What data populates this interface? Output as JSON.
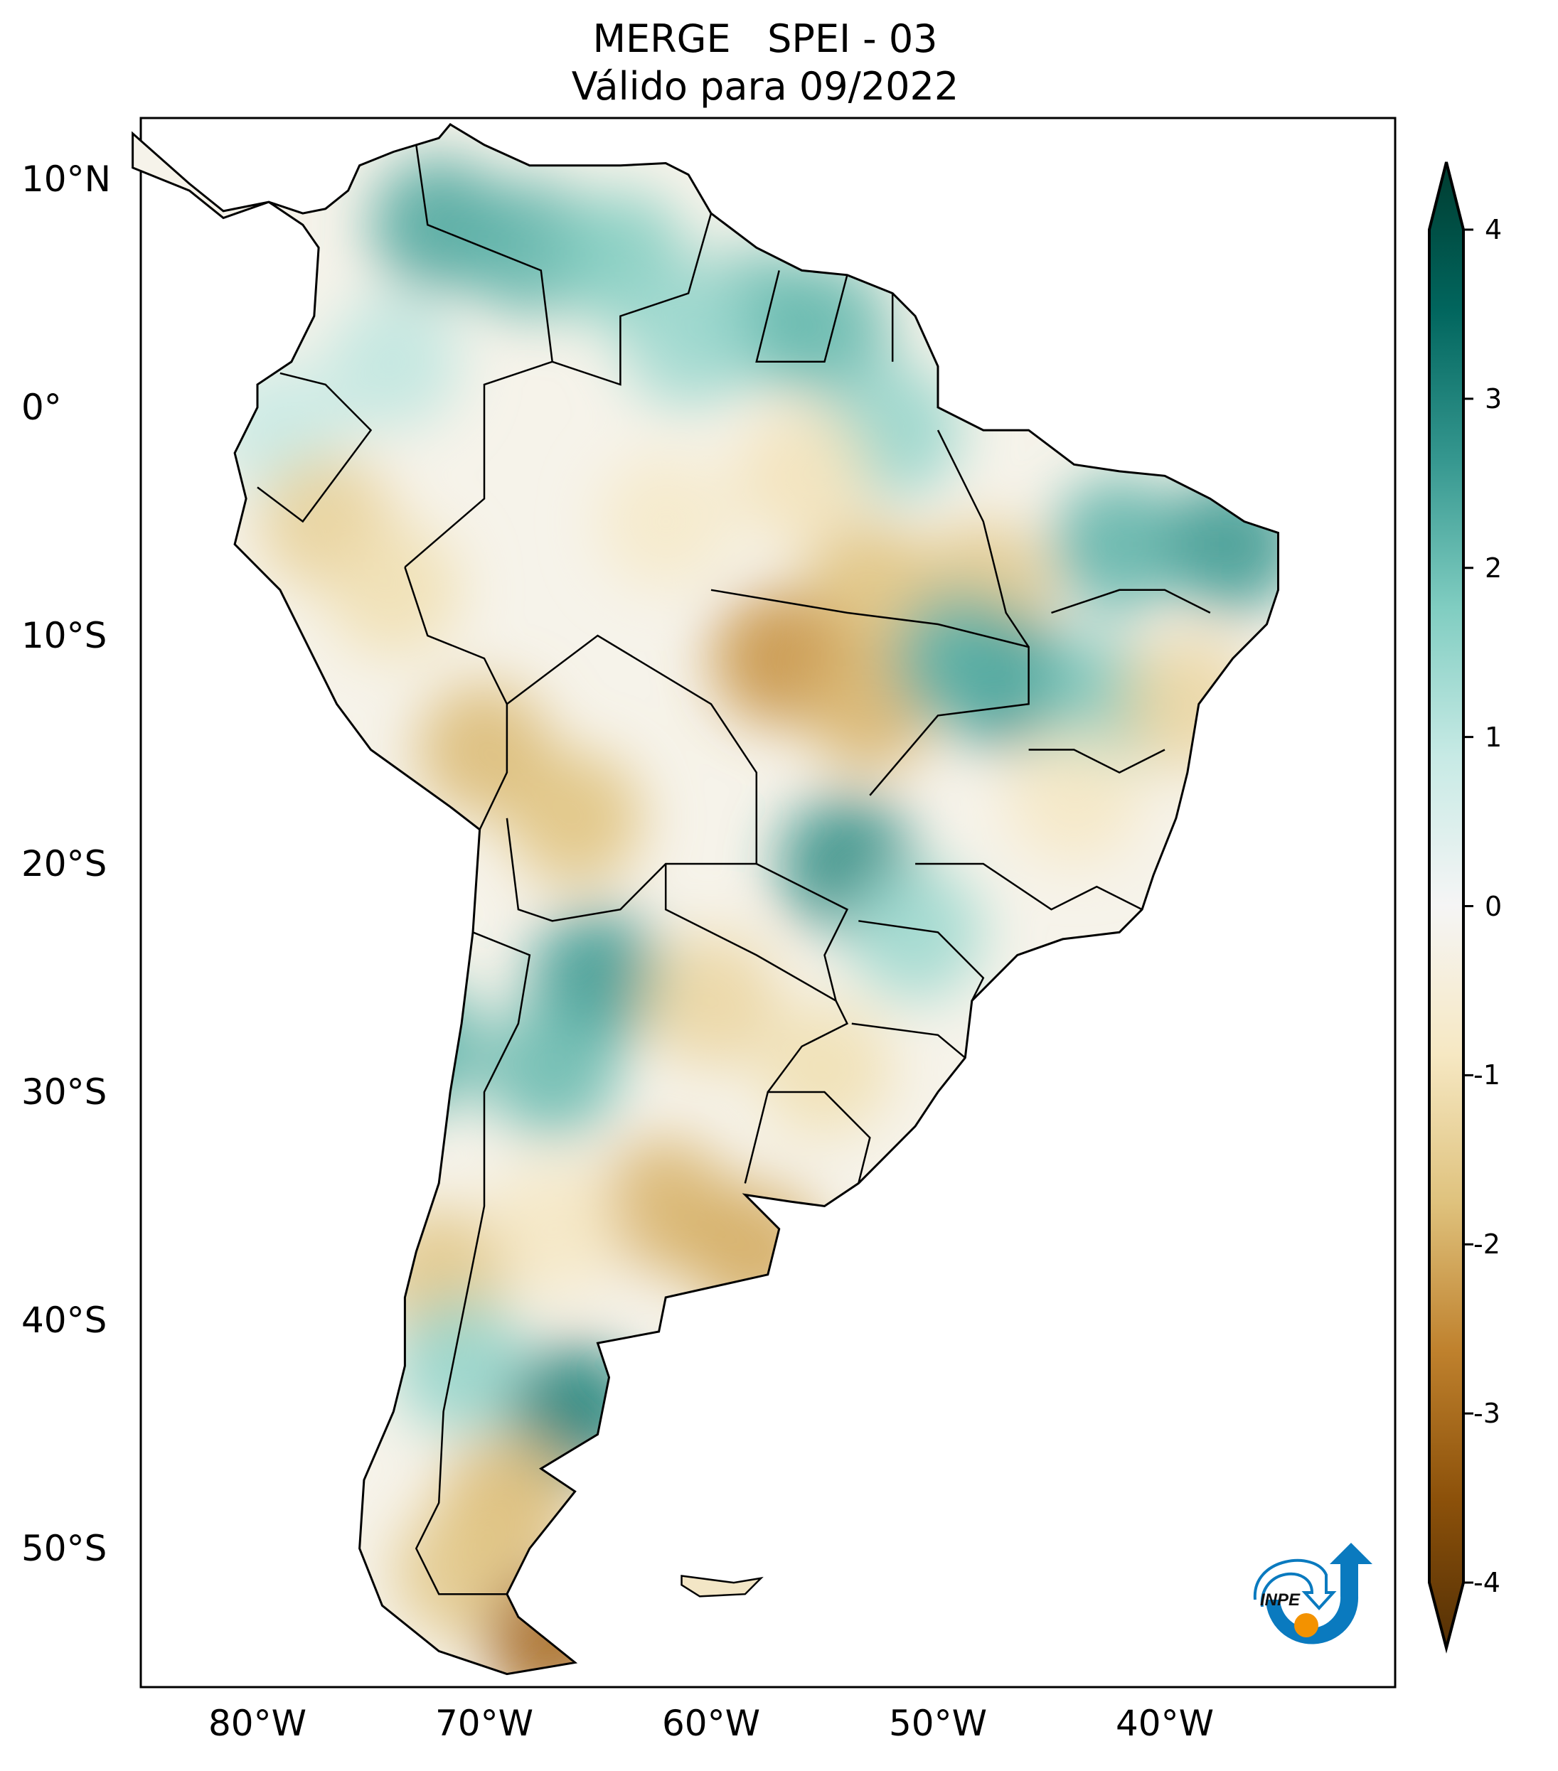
{
  "title": {
    "line1": "MERGE   SPEI - 03",
    "line2": "Válido para 09/2022"
  },
  "axes": {
    "lat_ticks": [
      {
        "label": "10°N",
        "lat": 10
      },
      {
        "label": "0°",
        "lat": 0
      },
      {
        "label": "10°S",
        "lat": -10
      },
      {
        "label": "20°S",
        "lat": -20
      },
      {
        "label": "30°S",
        "lat": -30
      },
      {
        "label": "40°S",
        "lat": -40
      },
      {
        "label": "50°S",
        "lat": -50
      }
    ],
    "lon_ticks": [
      {
        "label": "80°W",
        "lon": -80
      },
      {
        "label": "70°W",
        "lon": -70
      },
      {
        "label": "60°W",
        "lon": -60
      },
      {
        "label": "50°W",
        "lon": -50
      },
      {
        "label": "40°W",
        "lon": -40
      }
    ],
    "extent": {
      "lon": [
        -85.5,
        -30.5
      ],
      "lat": [
        -56.5,
        12.5
      ]
    }
  },
  "colorbar": {
    "ticks": [
      "4",
      "3",
      "2",
      "1",
      "0",
      "-1",
      "-2",
      "-3",
      "-4"
    ],
    "range": [
      -4,
      4
    ],
    "extend": "both",
    "colormap": [
      "#543005",
      "#8c510a",
      "#bf812d",
      "#dfc27d",
      "#f6e8c3",
      "#f5f5f5",
      "#c7eae5",
      "#80cdc1",
      "#35978f",
      "#01665e",
      "#003c30"
    ]
  },
  "logo": {
    "text": "INPE",
    "blue": "#0a7abf",
    "orange": "#f39200"
  },
  "spei_regions": [
    {
      "lon": -72,
      "lat": 8,
      "v": 2.2
    },
    {
      "lon": -68,
      "lat": 7,
      "v": 2.0
    },
    {
      "lon": -64,
      "lat": 6.5,
      "v": 1.6
    },
    {
      "lon": -58,
      "lat": 4,
      "v": 1.8
    },
    {
      "lon": -55,
      "lat": 3.5,
      "v": 1.9
    },
    {
      "lon": -61,
      "lat": 3,
      "v": 1.3
    },
    {
      "lon": -52,
      "lat": -1,
      "v": 1.4
    },
    {
      "lon": -74,
      "lat": 2,
      "v": 0.9
    },
    {
      "lon": -79,
      "lat": -1,
      "v": 0.8
    },
    {
      "lon": -77,
      "lat": -5,
      "v": -1.3
    },
    {
      "lon": -74,
      "lat": -8,
      "v": -1.0
    },
    {
      "lon": -70,
      "lat": -15,
      "v": -1.7
    },
    {
      "lon": -66,
      "lat": -18,
      "v": -1.6
    },
    {
      "lon": -62,
      "lat": -5,
      "v": -0.7
    },
    {
      "lon": -56,
      "lat": -3,
      "v": -0.9
    },
    {
      "lon": -53,
      "lat": -8,
      "v": -1.6
    },
    {
      "lon": -57,
      "lat": -11,
      "v": -2.2
    },
    {
      "lon": -53,
      "lat": -13,
      "v": -1.8
    },
    {
      "lon": -48,
      "lat": -8,
      "v": -1.5
    },
    {
      "lon": -47,
      "lat": -12,
      "v": 2.6
    },
    {
      "lon": -49,
      "lat": -11,
      "v": 2.0
    },
    {
      "lon": -42,
      "lat": -6,
      "v": 2.0
    },
    {
      "lon": -37,
      "lat": -6,
      "v": 2.4
    },
    {
      "lon": -43,
      "lat": -13,
      "v": 1.7
    },
    {
      "lon": -39,
      "lat": -13,
      "v": -1.2
    },
    {
      "lon": -44,
      "lat": -17,
      "v": -0.8
    },
    {
      "lon": -54,
      "lat": -20,
      "v": 2.6
    },
    {
      "lon": -51,
      "lat": -23,
      "v": 1.3
    },
    {
      "lon": -65,
      "lat": -25,
      "v": 2.4
    },
    {
      "lon": -67,
      "lat": -29,
      "v": 1.9
    },
    {
      "lon": -60,
      "lat": -26,
      "v": -1.2
    },
    {
      "lon": -55,
      "lat": -29,
      "v": -1.0
    },
    {
      "lon": -62,
      "lat": -35,
      "v": -1.8
    },
    {
      "lon": -58,
      "lat": -37,
      "v": -1.9
    },
    {
      "lon": -67,
      "lat": -36,
      "v": -0.8
    },
    {
      "lon": -72,
      "lat": -38,
      "v": -1.5
    },
    {
      "lon": -71,
      "lat": -42,
      "v": 1.4
    },
    {
      "lon": -66,
      "lat": -44,
      "v": 2.8
    },
    {
      "lon": -69,
      "lat": -48,
      "v": -1.7
    },
    {
      "lon": -71,
      "lat": -51,
      "v": -1.5
    },
    {
      "lon": -67,
      "lat": -54,
      "v": -2.8
    },
    {
      "lon": -73,
      "lat": -28,
      "v": 2.0
    }
  ]
}
